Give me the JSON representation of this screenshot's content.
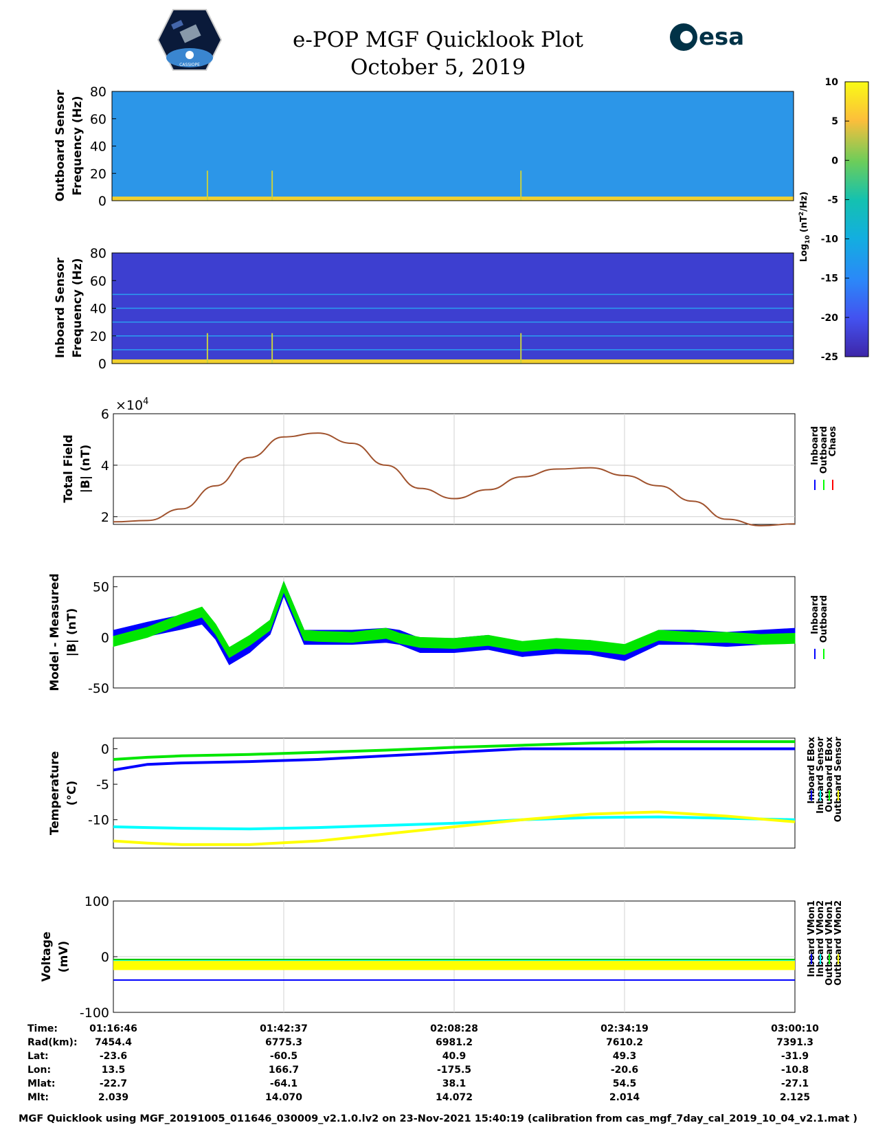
{
  "header": {
    "title": "e-POP MGF Quicklook Plot",
    "date": "October 5, 2019",
    "left_logo": "CASSIOPE",
    "right_logo": "esa"
  },
  "colorbar": {
    "ticks": [
      "10",
      "5",
      "0",
      "-5",
      "-10",
      "-15",
      "-20",
      "-25"
    ],
    "label": "Log10 (nT2/Hz)",
    "label_base": "Log",
    "label_sub": "10",
    "label_unit_pre": "(nT",
    "label_unit_sup": "2",
    "label_unit_post": "/Hz)"
  },
  "panels": {
    "outboard_spec": {
      "ylabel_line1": "Outboard Sensor",
      "ylabel_line2": "Frequency (Hz)",
      "yticks": [
        "80",
        "60",
        "40",
        "20",
        "0"
      ]
    },
    "inboard_spec": {
      "ylabel_line1": "Inboard Sensor",
      "ylabel_line2": "Frequency (Hz)",
      "yticks": [
        "80",
        "60",
        "40",
        "20",
        "0"
      ]
    },
    "total_field": {
      "ylabel_line1": "Total Field",
      "ylabel_line2": "|B| (nT)",
      "yticks": [
        "6",
        "4",
        "2"
      ],
      "multiplier_base": "×10",
      "multiplier_exp": "4",
      "legend": [
        "Inboard",
        "Outboard",
        "Chaos"
      ],
      "legend_colors": [
        "#0000ff",
        "#00ff00",
        "#ff0000"
      ]
    },
    "model_measured": {
      "ylabel_line1": "Model - Measured",
      "ylabel_line2": "|B| (nT)",
      "yticks": [
        "50",
        "0",
        "-50"
      ],
      "legend": [
        "Inboard",
        "Outboard"
      ],
      "legend_colors": [
        "#0000ff",
        "#00ff00"
      ]
    },
    "temperature": {
      "ylabel_line1": "Temperature",
      "ylabel_line2": "(°C)",
      "yticks": [
        "0",
        "-5",
        "-10"
      ],
      "legend": [
        "Inboard EBox",
        "Inboard Sensor",
        "Outboard EBox",
        "Outboard Sensor"
      ],
      "legend_colors": [
        "#0000ff",
        "#00ffff",
        "#00ff00",
        "#ffff00"
      ]
    },
    "voltage": {
      "ylabel_line1": "Voltage",
      "ylabel_line2": "(mV)",
      "yticks": [
        "100",
        "0",
        "-100"
      ],
      "legend": [
        "Inboard VMon1",
        "Inboard VMon2",
        "Outboard VMon1",
        "Outboard VMon2"
      ],
      "legend_colors": [
        "#0000ff",
        "#00ffff",
        "#00ff00",
        "#ffff00"
      ]
    }
  },
  "info_table": {
    "labels": [
      "Time:",
      "Rad(km):",
      "Lat:",
      "Lon:",
      "Mlat:",
      "Mlt:"
    ],
    "columns": [
      {
        "time": "01:16:46",
        "rad": "7454.4",
        "lat": "-23.6",
        "lon": "13.5",
        "mlat": "-22.7",
        "mlt": "2.039"
      },
      {
        "time": "01:42:37",
        "rad": "6775.3",
        "lat": "-60.5",
        "lon": "166.7",
        "mlat": "-64.1",
        "mlt": "14.070"
      },
      {
        "time": "02:08:28",
        "rad": "6981.2",
        "lat": "40.9",
        "lon": "-175.5",
        "mlat": "38.1",
        "mlt": "14.072"
      },
      {
        "time": "02:34:19",
        "rad": "7610.2",
        "lat": "49.3",
        "lon": "-20.6",
        "mlat": "54.5",
        "mlt": "2.014"
      },
      {
        "time": "03:00:10",
        "rad": "7391.3",
        "lat": "-31.9",
        "lon": "-10.8",
        "mlat": "-27.1",
        "mlt": "2.125"
      }
    ]
  },
  "footer": "MGF Quicklook using MGF_20191005_011646_030009_v2.1.0.lv2 on 23-Nov-2021 15:40:19 (calibration from cas_mgf_7day_cal_2019_10_04_v2.1.mat )",
  "chart_data": [
    {
      "type": "heatmap",
      "title": "Outboard Sensor spectrogram",
      "ylabel": "Outboard Sensor Frequency (Hz)",
      "ylim": [
        0,
        80
      ],
      "clim": [
        -25,
        10
      ],
      "background_level": -9,
      "low_freq_band_level": 7
    },
    {
      "type": "heatmap",
      "title": "Inboard Sensor spectrogram",
      "ylabel": "Inboard Sensor Frequency (Hz)",
      "ylim": [
        0,
        80
      ],
      "clim": [
        -25,
        10
      ],
      "background_level": -22,
      "line_frequencies": [
        50,
        40,
        30,
        20,
        10
      ],
      "low_freq_band_level": 7
    },
    {
      "type": "line",
      "title": "Total Field |B| (nT)",
      "ylabel": "|B| (nT) x10^4",
      "ylim": [
        1.7,
        6
      ],
      "x_fraction": [
        0,
        0.05,
        0.1,
        0.15,
        0.2,
        0.25,
        0.3,
        0.35,
        0.4,
        0.45,
        0.5,
        0.55,
        0.6,
        0.65,
        0.7,
        0.75,
        0.8,
        0.85,
        0.9,
        0.95,
        1.0
      ],
      "series": [
        {
          "name": "Chaos",
          "values": [
            1.8,
            1.85,
            2.3,
            3.2,
            4.3,
            5.1,
            5.25,
            4.85,
            4.0,
            3.1,
            2.7,
            3.05,
            3.55,
            3.85,
            3.9,
            3.6,
            3.2,
            2.6,
            1.9,
            1.65,
            1.72
          ]
        }
      ]
    },
    {
      "type": "area",
      "title": "Model - Measured |B| (nT)",
      "ylabel": "|B| (nT)",
      "ylim": [
        -50,
        60
      ],
      "x_fraction": [
        0,
        0.05,
        0.1,
        0.13,
        0.15,
        0.17,
        0.2,
        0.23,
        0.25,
        0.28,
        0.3,
        0.35,
        0.4,
        0.42,
        0.45,
        0.5,
        0.55,
        0.6,
        0.65,
        0.7,
        0.75,
        0.8,
        0.85,
        0.9,
        0.95,
        1.0
      ],
      "series": [
        {
          "name": "Inboard",
          "values": [
            0,
            8,
            15,
            20,
            5,
            -20,
            -8,
            10,
            48,
            0,
            0,
            0,
            2,
            0,
            -8,
            -8,
            -5,
            -12,
            -9,
            -10,
            -16,
            0,
            0,
            -2,
            0,
            2
          ],
          "spread": 14
        },
        {
          "name": "Outboard",
          "values": [
            -4,
            5,
            18,
            25,
            8,
            -15,
            -3,
            12,
            50,
            2,
            1,
            0,
            4,
            -1,
            -5,
            -6,
            -3,
            -9,
            -6,
            -8,
            -12,
            2,
            0,
            0,
            -2,
            -1
          ],
          "spread": 10
        }
      ]
    },
    {
      "type": "line",
      "title": "Temperature (°C)",
      "ylabel": "Temperature (°C)",
      "ylim": [
        -14,
        1.5
      ],
      "x_fraction": [
        0,
        0.05,
        0.1,
        0.2,
        0.3,
        0.4,
        0.5,
        0.6,
        0.7,
        0.8,
        0.9,
        1.0
      ],
      "series": [
        {
          "name": "Inboard EBox",
          "values": [
            -3.0,
            -2.2,
            -2.0,
            -1.8,
            -1.5,
            -1.0,
            -0.5,
            0,
            0,
            0,
            0,
            0
          ]
        },
        {
          "name": "Inboard Sensor",
          "values": [
            -11.0,
            -11.1,
            -11.2,
            -11.3,
            -11.1,
            -10.8,
            -10.5,
            -10.0,
            -9.7,
            -9.6,
            -9.8,
            -10.0
          ]
        },
        {
          "name": "Outboard EBox",
          "values": [
            -1.5,
            -1.2,
            -1.0,
            -0.8,
            -0.5,
            -0.2,
            0.2,
            0.5,
            0.8,
            1.0,
            1.0,
            1.0
          ]
        },
        {
          "name": "Outboard Sensor",
          "values": [
            -13.0,
            -13.3,
            -13.5,
            -13.5,
            -13.0,
            -12.0,
            -11.0,
            -10.0,
            -9.2,
            -8.9,
            -9.5,
            -10.3
          ]
        }
      ]
    },
    {
      "type": "line",
      "title": "Voltage (mV)",
      "ylabel": "Voltage (mV)",
      "ylim": [
        -100,
        100
      ],
      "series": [
        {
          "name": "Inboard VMon1",
          "values": [
            -42,
            -42
          ]
        },
        {
          "name": "Inboard VMon2",
          "values": [
            -7,
            -7
          ]
        },
        {
          "name": "Outboard VMon1",
          "values": [
            -5,
            -5
          ]
        },
        {
          "name": "Outboard VMon2",
          "values": [
            -15,
            -15
          ],
          "spread": 18
        }
      ]
    }
  ]
}
